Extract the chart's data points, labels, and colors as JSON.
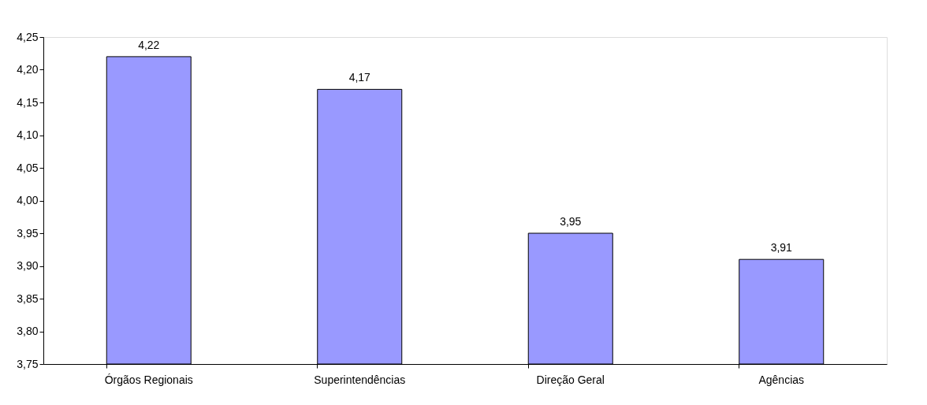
{
  "chart_data": {
    "type": "bar",
    "categories": [
      "Órgãos Regionais",
      "Superintendências",
      "Direção Geral",
      "Agências"
    ],
    "values": [
      4.22,
      4.17,
      3.95,
      3.91
    ],
    "value_labels": [
      "4,22",
      "4,17",
      "3,95",
      "3,91"
    ],
    "color": "#9999ff",
    "ylim": [
      3.75,
      4.25
    ],
    "yticks": [
      {
        "value": 3.75,
        "label": "3,75"
      },
      {
        "value": 3.8,
        "label": "3,80"
      },
      {
        "value": 3.85,
        "label": "3,85"
      },
      {
        "value": 3.9,
        "label": "3,90"
      },
      {
        "value": 3.95,
        "label": "3,95"
      },
      {
        "value": 4.0,
        "label": "4,00"
      },
      {
        "value": 4.05,
        "label": "4,05"
      },
      {
        "value": 4.1,
        "label": "4,10"
      },
      {
        "value": 4.15,
        "label": "4,15"
      },
      {
        "value": 4.2,
        "label": "4,20"
      },
      {
        "value": 4.25,
        "label": "4,25"
      }
    ],
    "grid": false
  }
}
